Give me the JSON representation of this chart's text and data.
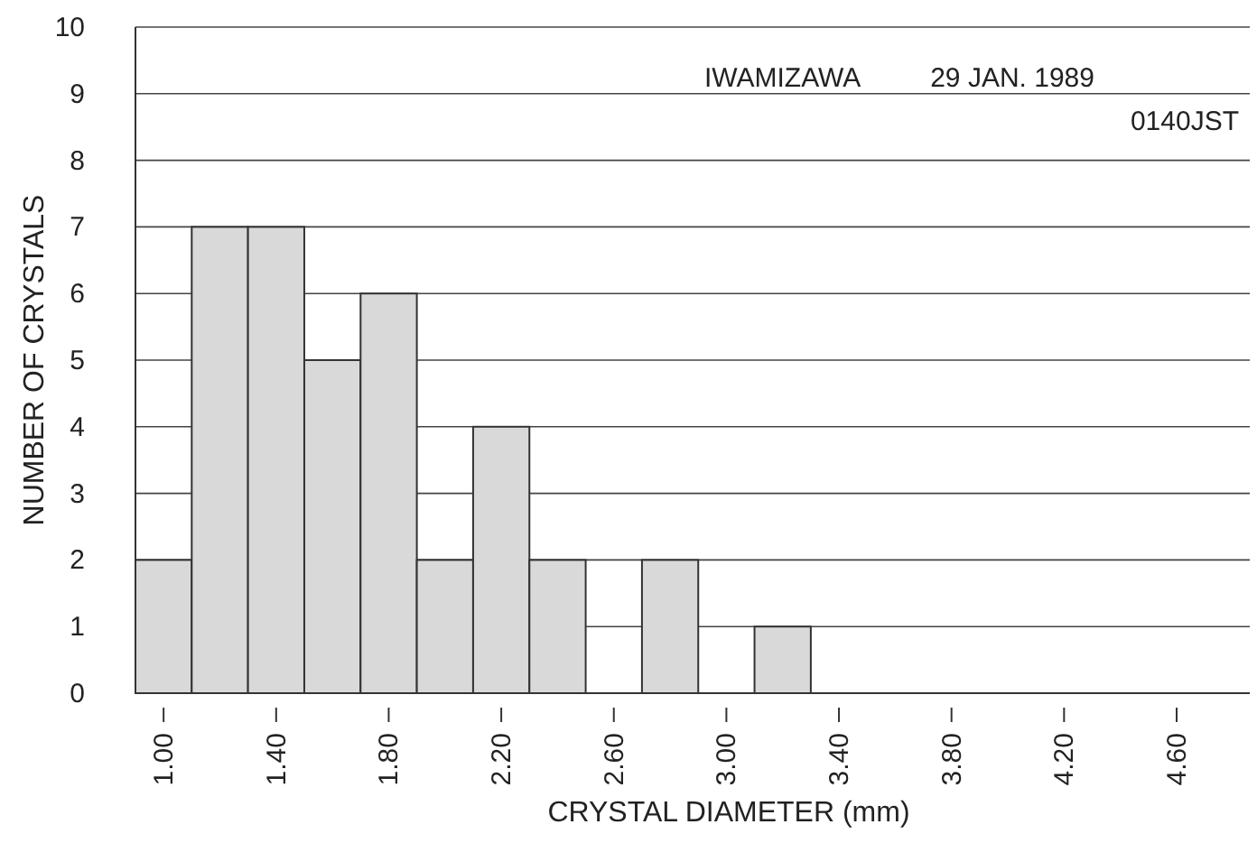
{
  "chart_data": {
    "type": "histogram",
    "xlabel": "CRYSTAL DIAMETER (mm)",
    "ylabel": "NUMBER OF CRYSTALS",
    "annotations": [
      "IWAMIZAWA",
      "29 JAN. 1989",
      "0140JST"
    ],
    "bins": [
      0.9,
      1.1,
      1.3,
      1.5,
      1.7,
      1.9,
      2.1,
      2.3,
      2.5,
      2.7,
      2.9,
      3.1,
      3.3
    ],
    "values": [
      2,
      7,
      7,
      5,
      6,
      2,
      4,
      2,
      0,
      2,
      0,
      1
    ],
    "color": "#d9d9d9",
    "xlim": [
      0.9,
      4.86
    ],
    "ylim": [
      0,
      10
    ],
    "xticks": [
      {
        "value": 1,
        "label": "1.00"
      },
      {
        "value": 1.4,
        "label": "1.40"
      },
      {
        "value": 1.8,
        "label": "1.80"
      },
      {
        "value": 2.2,
        "label": "2.20"
      },
      {
        "value": 2.6,
        "label": "2.60"
      },
      {
        "value": 3,
        "label": "3.00"
      },
      {
        "value": 3.4,
        "label": "3.40"
      },
      {
        "value": 3.8,
        "label": "3.80"
      },
      {
        "value": 4.2,
        "label": "4.20"
      },
      {
        "value": 4.6,
        "label": "4.60"
      }
    ],
    "yticks": [
      0,
      1,
      2,
      3,
      4,
      5,
      6,
      7,
      8,
      9,
      10
    ],
    "grid": "y"
  }
}
